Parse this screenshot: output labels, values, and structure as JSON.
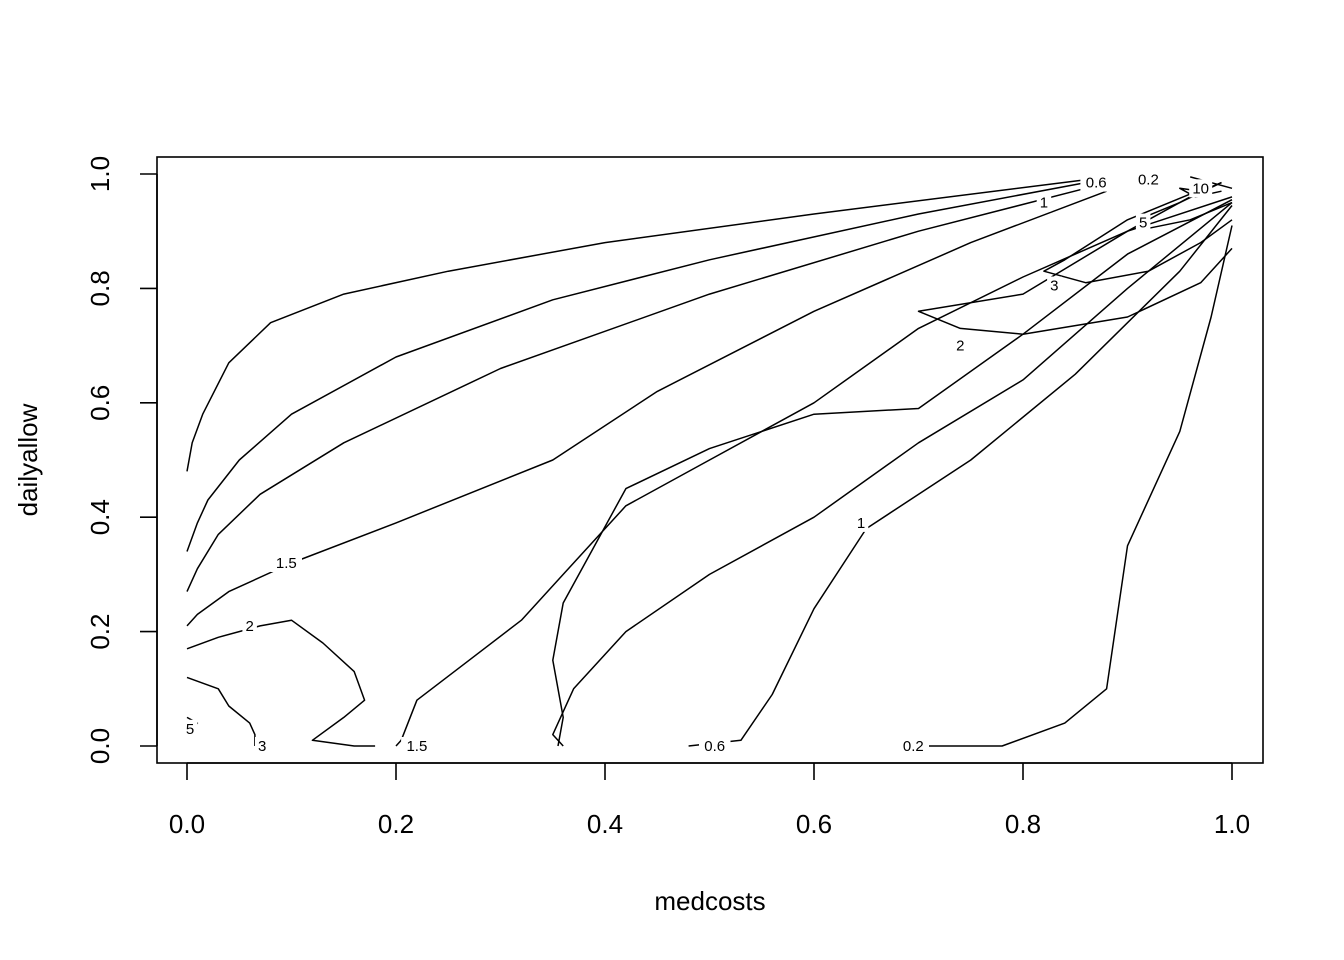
{
  "chart_data": {
    "type": "contour",
    "xlabel": "medcosts",
    "ylabel": "dailyallow",
    "xlim": [
      0,
      1
    ],
    "ylim": [
      0,
      1
    ],
    "x_ticks": [
      "0.0",
      "0.2",
      "0.4",
      "0.6",
      "0.8",
      "1.0"
    ],
    "y_ticks": [
      "0.0",
      "0.2",
      "0.4",
      "0.6",
      "0.8",
      "1.0"
    ],
    "grid": false,
    "colors": {
      "line": "#000000",
      "background": "#ffffff"
    },
    "contours": [
      {
        "level": "0.2",
        "points": [
          [
            0.86,
            0.99
          ],
          [
            0.6,
            0.93
          ],
          [
            0.4,
            0.88
          ],
          [
            0.25,
            0.83
          ],
          [
            0.15,
            0.79
          ],
          [
            0.08,
            0.74
          ],
          [
            0.04,
            0.67
          ],
          [
            0.015,
            0.58
          ],
          [
            0.005,
            0.53
          ],
          [
            0.0,
            0.48
          ]
        ]
      },
      {
        "level": "0.6",
        "points": [
          [
            0.86,
            0.985
          ],
          [
            0.7,
            0.93
          ],
          [
            0.5,
            0.85
          ],
          [
            0.35,
            0.78
          ],
          [
            0.2,
            0.68
          ],
          [
            0.1,
            0.58
          ],
          [
            0.05,
            0.5
          ],
          [
            0.02,
            0.43
          ],
          [
            0.01,
            0.39
          ],
          [
            0.0,
            0.34
          ]
        ]
      },
      {
        "level": "1",
        "points": [
          [
            0.86,
            0.975
          ],
          [
            0.7,
            0.9
          ],
          [
            0.5,
            0.79
          ],
          [
            0.3,
            0.66
          ],
          [
            0.15,
            0.53
          ],
          [
            0.07,
            0.44
          ],
          [
            0.03,
            0.37
          ],
          [
            0.01,
            0.31
          ],
          [
            0.0,
            0.27
          ]
        ]
      },
      {
        "level": "1.5",
        "points": [
          [
            0.88,
            0.97
          ],
          [
            0.75,
            0.88
          ],
          [
            0.6,
            0.76
          ],
          [
            0.45,
            0.62
          ],
          [
            0.35,
            0.5
          ],
          [
            0.2,
            0.39
          ],
          [
            0.1,
            0.32
          ],
          [
            0.04,
            0.27
          ],
          [
            0.01,
            0.23
          ],
          [
            0.0,
            0.21
          ]
        ]
      },
      {
        "level": "0.6",
        "points": [
          [
            0.96,
            0.995
          ],
          [
            1.0,
            0.975
          ]
        ]
      },
      {
        "level": "1",
        "points": [
          [
            1.0,
            0.96
          ],
          [
            0.9,
            0.9
          ],
          [
            0.8,
            0.82
          ],
          [
            0.7,
            0.73
          ],
          [
            0.6,
            0.6
          ],
          [
            0.5,
            0.5
          ],
          [
            0.42,
            0.42
          ],
          [
            0.36,
            0.3
          ],
          [
            0.32,
            0.22
          ],
          [
            0.27,
            0.15
          ],
          [
            0.22,
            0.08
          ],
          [
            0.205,
            0.01
          ],
          [
            0.2,
            0.0
          ]
        ]
      },
      {
        "level": "1",
        "points": [
          [
            1.0,
            0.955
          ],
          [
            0.9,
            0.86
          ],
          [
            0.8,
            0.72
          ],
          [
            0.7,
            0.59
          ],
          [
            0.6,
            0.58
          ],
          [
            0.5,
            0.52
          ],
          [
            0.42,
            0.45
          ],
          [
            0.36,
            0.25
          ],
          [
            0.35,
            0.15
          ],
          [
            0.36,
            0.05
          ],
          [
            0.355,
            0.0
          ]
        ]
      },
      {
        "level": "1",
        "points": [
          [
            1.0,
            0.95
          ],
          [
            0.9,
            0.8
          ],
          [
            0.8,
            0.64
          ],
          [
            0.7,
            0.53
          ],
          [
            0.6,
            0.4
          ],
          [
            0.5,
            0.3
          ],
          [
            0.42,
            0.2
          ],
          [
            0.37,
            0.1
          ],
          [
            0.35,
            0.02
          ],
          [
            0.36,
            0.0
          ]
        ]
      },
      {
        "level": "0.6",
        "points": [
          [
            1.0,
            0.945
          ],
          [
            0.95,
            0.83
          ],
          [
            0.85,
            0.65
          ],
          [
            0.75,
            0.5
          ],
          [
            0.65,
            0.38
          ],
          [
            0.6,
            0.24
          ],
          [
            0.56,
            0.09
          ],
          [
            0.53,
            0.01
          ],
          [
            0.48,
            0.0
          ]
        ]
      },
      {
        "level": "0.2",
        "points": [
          [
            1.0,
            0.91
          ],
          [
            0.98,
            0.75
          ],
          [
            0.95,
            0.55
          ],
          [
            0.9,
            0.35
          ],
          [
            0.88,
            0.1
          ],
          [
            0.84,
            0.04
          ],
          [
            0.78,
            0.0
          ],
          [
            0.68,
            0.0
          ]
        ]
      },
      {
        "level": "2",
        "points": [
          [
            0.0,
            0.17
          ],
          [
            0.03,
            0.19
          ],
          [
            0.07,
            0.21
          ],
          [
            0.1,
            0.22
          ],
          [
            0.13,
            0.18
          ],
          [
            0.16,
            0.13
          ],
          [
            0.17,
            0.08
          ],
          [
            0.15,
            0.05
          ],
          [
            0.12,
            0.01
          ],
          [
            0.16,
            0.0
          ],
          [
            0.18,
            0.0
          ]
        ]
      },
      {
        "level": "3",
        "points": [
          [
            0.0,
            0.12
          ],
          [
            0.03,
            0.1
          ],
          [
            0.04,
            0.07
          ],
          [
            0.06,
            0.04
          ],
          [
            0.065,
            0.02
          ],
          [
            0.065,
            0.0
          ]
        ]
      },
      {
        "level": "5",
        "points": [
          [
            0.0,
            0.05
          ],
          [
            0.01,
            0.04
          ],
          [
            0.0,
            0.02
          ]
        ]
      },
      {
        "level": "2",
        "points": [
          [
            0.98,
            0.98
          ],
          [
            0.9,
            0.9
          ],
          [
            0.8,
            0.79
          ],
          [
            0.7,
            0.76
          ],
          [
            0.74,
            0.73
          ],
          [
            0.8,
            0.72
          ],
          [
            0.9,
            0.75
          ],
          [
            0.97,
            0.81
          ],
          [
            1.0,
            0.87
          ]
        ]
      },
      {
        "level": "3",
        "points": [
          [
            0.98,
            0.98
          ],
          [
            0.9,
            0.92
          ],
          [
            0.84,
            0.85
          ],
          [
            0.82,
            0.83
          ],
          [
            0.86,
            0.81
          ],
          [
            0.92,
            0.83
          ],
          [
            0.97,
            0.88
          ],
          [
            1.0,
            0.92
          ]
        ]
      },
      {
        "level": "5",
        "points": [
          [
            0.99,
            0.985
          ],
          [
            0.95,
            0.95
          ],
          [
            0.91,
            0.92
          ],
          [
            0.92,
            0.905
          ],
          [
            0.96,
            0.92
          ],
          [
            1.0,
            0.95
          ]
        ]
      },
      {
        "level": "10",
        "points": [
          [
            0.99,
            0.985
          ],
          [
            0.97,
            0.97
          ],
          [
            0.95,
            0.975
          ],
          [
            0.965,
            0.96
          ],
          [
            0.99,
            0.97
          ]
        ]
      }
    ],
    "contour_labels": [
      {
        "text": "0.2",
        "x": 0.92,
        "y": 0.99
      },
      {
        "text": "0.6",
        "x": 0.87,
        "y": 0.985
      },
      {
        "text": "1",
        "x": 0.82,
        "y": 0.95
      },
      {
        "text": "10",
        "x": 0.97,
        "y": 0.975
      },
      {
        "text": "5",
        "x": 0.915,
        "y": 0.915
      },
      {
        "text": "3",
        "x": 0.83,
        "y": 0.805
      },
      {
        "text": "2",
        "x": 0.74,
        "y": 0.7
      },
      {
        "text": "1",
        "x": 0.645,
        "y": 0.39
      },
      {
        "text": "1.5",
        "x": 0.095,
        "y": 0.32
      },
      {
        "text": "2",
        "x": 0.06,
        "y": 0.21
      },
      {
        "text": "5",
        "x": 0.003,
        "y": 0.03
      },
      {
        "text": "3",
        "x": 0.072,
        "y": 0.0
      },
      {
        "text": "1.5",
        "x": 0.22,
        "y": 0.0
      },
      {
        "text": "0.6",
        "x": 0.505,
        "y": 0.0
      },
      {
        "text": "0.2",
        "x": 0.695,
        "y": 0.0
      }
    ]
  }
}
